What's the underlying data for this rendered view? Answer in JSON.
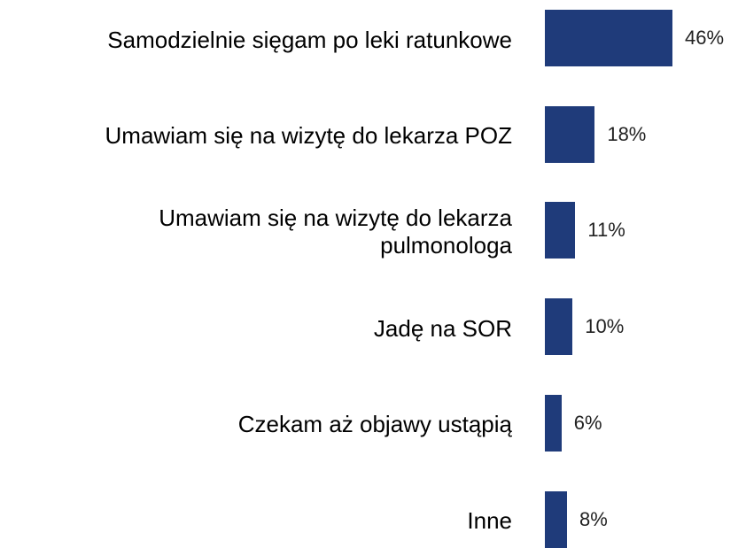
{
  "chart_data": {
    "type": "bar",
    "orientation": "horizontal",
    "categories": [
      "Samodzielnie sięgam po leki ratunkowe",
      "Umawiam się na wizytę do lekarza POZ",
      "Umawiam się na wizytę do lekarza\npulmonologa",
      "Jadę na SOR",
      "Czekam aż objawy ustąpią",
      "Inne"
    ],
    "values": [
      46,
      18,
      11,
      10,
      6,
      8
    ],
    "value_labels": [
      "46%",
      "18%",
      "11%",
      "10%",
      "6%",
      "8%"
    ],
    "color": "#1f3b7a"
  }
}
